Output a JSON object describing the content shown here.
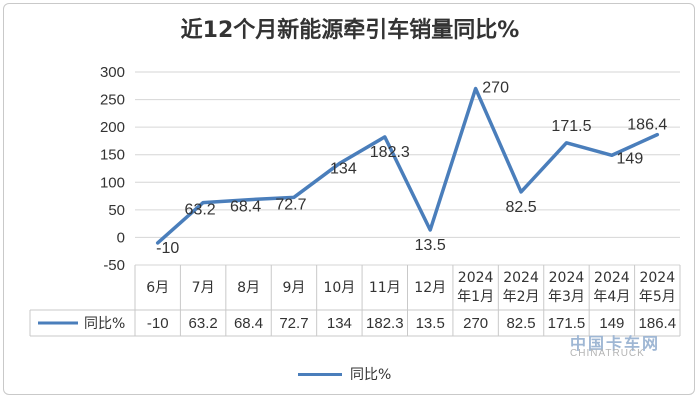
{
  "chart_data": {
    "type": "line",
    "title": "近12个月新能源牵引车销量同比%",
    "categories": [
      "6月",
      "7月",
      "8月",
      "9月",
      "10月",
      "11月",
      "12月",
      "2024年1月",
      "2024年2月",
      "2024年3月",
      "2024年4月",
      "2024年5月"
    ],
    "series": [
      {
        "name": "同比%",
        "values": [
          -10,
          63.2,
          68.4,
          72.7,
          134,
          182.3,
          13.5,
          270,
          82.5,
          171.5,
          149,
          186.4
        ],
        "color": "#4a7ebb"
      }
    ],
    "ylim": [
      -50,
      300
    ],
    "yticks": [
      -50,
      0,
      50,
      100,
      150,
      200,
      250,
      300
    ],
    "grid": true,
    "legend": "bottom",
    "data_table": true
  },
  "watermark": {
    "logo_text": "中国卡车网",
    "sub_text": "CHINATRUCK"
  }
}
